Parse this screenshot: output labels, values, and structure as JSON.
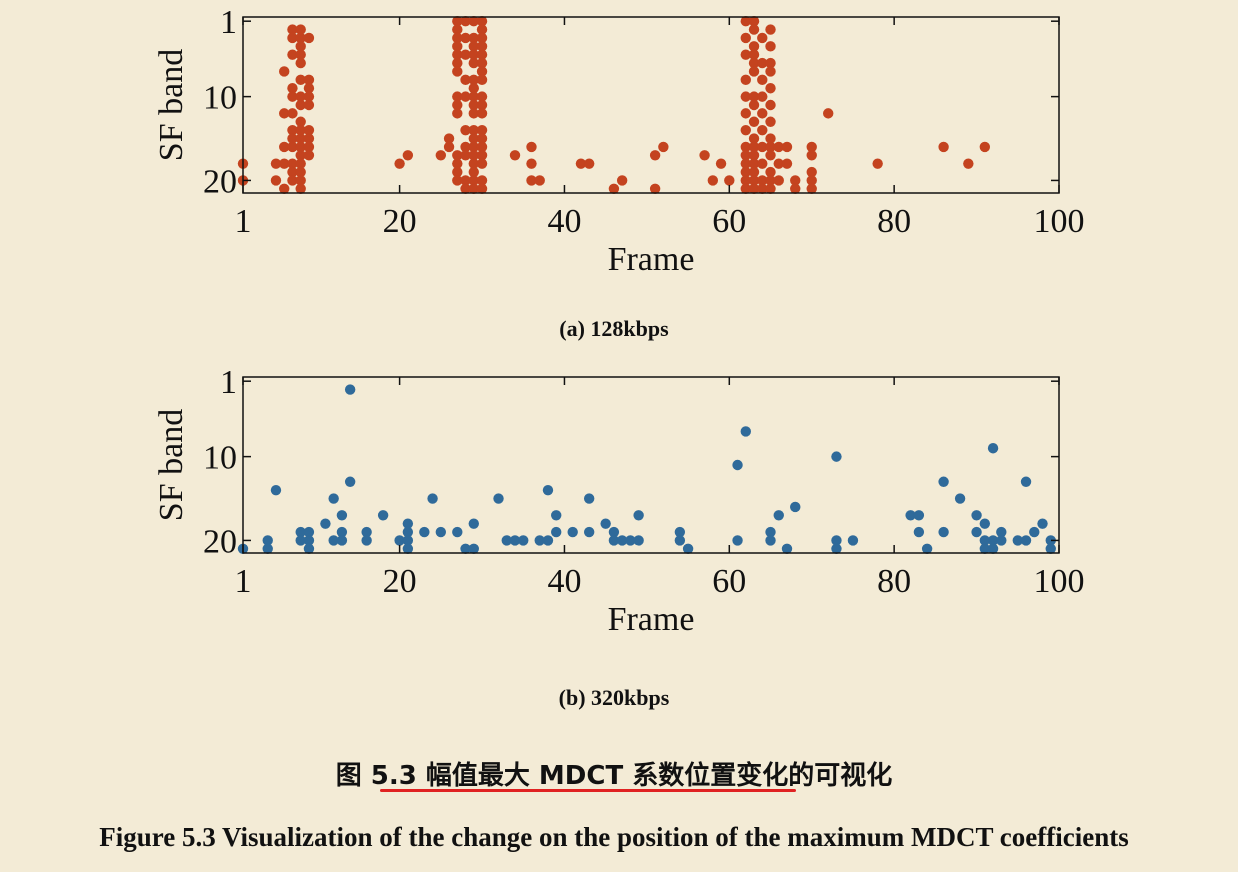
{
  "chart_data": [
    {
      "type": "scatter",
      "color": "#c4431f",
      "xlabel": "Frame",
      "ylabel": "SF band",
      "xlim": [
        1,
        100
      ],
      "ylim": [
        21.5,
        0.5
      ],
      "y_inverted": true,
      "xticks": [
        1,
        20,
        40,
        60,
        80,
        100
      ],
      "yticks": [
        1,
        10,
        20
      ],
      "grid": false,
      "caption": "(a) 128kbps",
      "points": [
        [
          1,
          18
        ],
        [
          1,
          20
        ],
        [
          5,
          18
        ],
        [
          5,
          20
        ],
        [
          6,
          7
        ],
        [
          6,
          12
        ],
        [
          6,
          16
        ],
        [
          6,
          18
        ],
        [
          6,
          21
        ],
        [
          7,
          2
        ],
        [
          7,
          3
        ],
        [
          7,
          5
        ],
        [
          7,
          9
        ],
        [
          7,
          10
        ],
        [
          7,
          12
        ],
        [
          7,
          14
        ],
        [
          7,
          15
        ],
        [
          7,
          16
        ],
        [
          7,
          18
        ],
        [
          7,
          19
        ],
        [
          7,
          20
        ],
        [
          8,
          2
        ],
        [
          8,
          3
        ],
        [
          8,
          4
        ],
        [
          8,
          5
        ],
        [
          8,
          6
        ],
        [
          8,
          8
        ],
        [
          8,
          10
        ],
        [
          8,
          11
        ],
        [
          8,
          13
        ],
        [
          8,
          14
        ],
        [
          8,
          15
        ],
        [
          8,
          16
        ],
        [
          8,
          17
        ],
        [
          8,
          18
        ],
        [
          8,
          19
        ],
        [
          8,
          20
        ],
        [
          8,
          21
        ],
        [
          9,
          3
        ],
        [
          9,
          8
        ],
        [
          9,
          9
        ],
        [
          9,
          10
        ],
        [
          9,
          11
        ],
        [
          9,
          14
        ],
        [
          9,
          15
        ],
        [
          9,
          16
        ],
        [
          9,
          17
        ],
        [
          20,
          18
        ],
        [
          21,
          17
        ],
        [
          25,
          17
        ],
        [
          26,
          15
        ],
        [
          26,
          16
        ],
        [
          27,
          1
        ],
        [
          27,
          2
        ],
        [
          27,
          3
        ],
        [
          27,
          4
        ],
        [
          27,
          5
        ],
        [
          27,
          6
        ],
        [
          27,
          7
        ],
        [
          27,
          10
        ],
        [
          27,
          11
        ],
        [
          27,
          12
        ],
        [
          27,
          17
        ],
        [
          27,
          18
        ],
        [
          27,
          19
        ],
        [
          27,
          20
        ],
        [
          28,
          1
        ],
        [
          28,
          3
        ],
        [
          28,
          5
        ],
        [
          28,
          8
        ],
        [
          28,
          10
        ],
        [
          28,
          14
        ],
        [
          28,
          16
        ],
        [
          28,
          17
        ],
        [
          28,
          20
        ],
        [
          28,
          21
        ],
        [
          29,
          1
        ],
        [
          29,
          3
        ],
        [
          29,
          4
        ],
        [
          29,
          5
        ],
        [
          29,
          6
        ],
        [
          29,
          8
        ],
        [
          29,
          9
        ],
        [
          29,
          10
        ],
        [
          29,
          11
        ],
        [
          29,
          12
        ],
        [
          29,
          14
        ],
        [
          29,
          15
        ],
        [
          29,
          16
        ],
        [
          29,
          17
        ],
        [
          29,
          18
        ],
        [
          29,
          19
        ],
        [
          29,
          20
        ],
        [
          29,
          21
        ],
        [
          30,
          1
        ],
        [
          30,
          2
        ],
        [
          30,
          3
        ],
        [
          30,
          4
        ],
        [
          30,
          5
        ],
        [
          30,
          6
        ],
        [
          30,
          7
        ],
        [
          30,
          8
        ],
        [
          30,
          10
        ],
        [
          30,
          11
        ],
        [
          30,
          12
        ],
        [
          30,
          14
        ],
        [
          30,
          15
        ],
        [
          30,
          16
        ],
        [
          30,
          17
        ],
        [
          30,
          18
        ],
        [
          30,
          20
        ],
        [
          30,
          21
        ],
        [
          34,
          17
        ],
        [
          36,
          16
        ],
        [
          36,
          18
        ],
        [
          36,
          20
        ],
        [
          37,
          20
        ],
        [
          42,
          18
        ],
        [
          43,
          18
        ],
        [
          46,
          21
        ],
        [
          47,
          20
        ],
        [
          51,
          17
        ],
        [
          51,
          21
        ],
        [
          52,
          16
        ],
        [
          57,
          17
        ],
        [
          58,
          20
        ],
        [
          59,
          18
        ],
        [
          60,
          20
        ],
        [
          62,
          1
        ],
        [
          62,
          3
        ],
        [
          62,
          5
        ],
        [
          62,
          8
        ],
        [
          62,
          10
        ],
        [
          62,
          12
        ],
        [
          62,
          14
        ],
        [
          62,
          16
        ],
        [
          62,
          17
        ],
        [
          62,
          18
        ],
        [
          62,
          19
        ],
        [
          62,
          20
        ],
        [
          62,
          21
        ],
        [
          63,
          1
        ],
        [
          63,
          2
        ],
        [
          63,
          4
        ],
        [
          63,
          5
        ],
        [
          63,
          6
        ],
        [
          63,
          7
        ],
        [
          63,
          10
        ],
        [
          63,
          11
        ],
        [
          63,
          13
        ],
        [
          63,
          15
        ],
        [
          63,
          16
        ],
        [
          63,
          17
        ],
        [
          63,
          18
        ],
        [
          63,
          19
        ],
        [
          63,
          20
        ],
        [
          63,
          21
        ],
        [
          64,
          3
        ],
        [
          64,
          6
        ],
        [
          64,
          8
        ],
        [
          64,
          10
        ],
        [
          64,
          12
        ],
        [
          64,
          14
        ],
        [
          64,
          16
        ],
        [
          64,
          18
        ],
        [
          64,
          20
        ],
        [
          64,
          21
        ],
        [
          65,
          2
        ],
        [
          65,
          4
        ],
        [
          65,
          6
        ],
        [
          65,
          7
        ],
        [
          65,
          9
        ],
        [
          65,
          11
        ],
        [
          65,
          13
        ],
        [
          65,
          15
        ],
        [
          65,
          16
        ],
        [
          65,
          17
        ],
        [
          65,
          19
        ],
        [
          65,
          20
        ],
        [
          65,
          21
        ],
        [
          66,
          16
        ],
        [
          66,
          18
        ],
        [
          66,
          20
        ],
        [
          67,
          16
        ],
        [
          67,
          18
        ],
        [
          68,
          20
        ],
        [
          68,
          21
        ],
        [
          70,
          16
        ],
        [
          70,
          17
        ],
        [
          70,
          19
        ],
        [
          70,
          20
        ],
        [
          70,
          21
        ],
        [
          72,
          12
        ],
        [
          78,
          18
        ],
        [
          86,
          16
        ],
        [
          89,
          18
        ],
        [
          91,
          16
        ]
      ]
    },
    {
      "type": "scatter",
      "color": "#2f6a9a",
      "xlabel": "Frame",
      "ylabel": "SF band",
      "xlim": [
        1,
        100
      ],
      "ylim": [
        21.5,
        0.5
      ],
      "y_inverted": true,
      "xticks": [
        1,
        20,
        40,
        60,
        80,
        100
      ],
      "yticks": [
        1,
        10,
        20
      ],
      "grid": false,
      "caption": "(b) 320kbps",
      "points": [
        [
          1,
          21
        ],
        [
          4,
          20
        ],
        [
          4,
          21
        ],
        [
          5,
          14
        ],
        [
          8,
          19
        ],
        [
          8,
          20
        ],
        [
          9,
          19
        ],
        [
          9,
          20
        ],
        [
          9,
          21
        ],
        [
          11,
          18
        ],
        [
          12,
          15
        ],
        [
          12,
          20
        ],
        [
          13,
          17
        ],
        [
          13,
          19
        ],
        [
          13,
          20
        ],
        [
          14,
          2
        ],
        [
          14,
          13
        ],
        [
          16,
          19
        ],
        [
          16,
          20
        ],
        [
          18,
          17
        ],
        [
          20,
          20
        ],
        [
          21,
          18
        ],
        [
          21,
          19
        ],
        [
          21,
          20
        ],
        [
          21,
          21
        ],
        [
          23,
          19
        ],
        [
          24,
          15
        ],
        [
          25,
          19
        ],
        [
          27,
          19
        ],
        [
          28,
          21
        ],
        [
          29,
          18
        ],
        [
          29,
          21
        ],
        [
          32,
          15
        ],
        [
          33,
          20
        ],
        [
          34,
          20
        ],
        [
          35,
          20
        ],
        [
          37,
          20
        ],
        [
          38,
          14
        ],
        [
          38,
          20
        ],
        [
          39,
          17
        ],
        [
          39,
          19
        ],
        [
          41,
          19
        ],
        [
          43,
          15
        ],
        [
          43,
          19
        ],
        [
          45,
          18
        ],
        [
          46,
          19
        ],
        [
          46,
          20
        ],
        [
          47,
          20
        ],
        [
          48,
          20
        ],
        [
          49,
          17
        ],
        [
          49,
          20
        ],
        [
          54,
          19
        ],
        [
          54,
          20
        ],
        [
          55,
          21
        ],
        [
          61,
          11
        ],
        [
          61,
          20
        ],
        [
          62,
          7
        ],
        [
          65,
          19
        ],
        [
          65,
          20
        ],
        [
          66,
          17
        ],
        [
          67,
          21
        ],
        [
          68,
          16
        ],
        [
          73,
          10
        ],
        [
          73,
          20
        ],
        [
          73,
          21
        ],
        [
          75,
          20
        ],
        [
          82,
          17
        ],
        [
          83,
          17
        ],
        [
          83,
          19
        ],
        [
          84,
          21
        ],
        [
          86,
          13
        ],
        [
          86,
          19
        ],
        [
          88,
          15
        ],
        [
          90,
          17
        ],
        [
          90,
          19
        ],
        [
          91,
          18
        ],
        [
          91,
          20
        ],
        [
          91,
          21
        ],
        [
          92,
          9
        ],
        [
          92,
          20
        ],
        [
          92,
          21
        ],
        [
          93,
          19
        ],
        [
          93,
          20
        ],
        [
          95,
          20
        ],
        [
          96,
          13
        ],
        [
          96,
          20
        ],
        [
          97,
          19
        ],
        [
          98,
          18
        ],
        [
          99,
          20
        ],
        [
          99,
          21
        ]
      ]
    }
  ],
  "captions": {
    "cn_prefix": "图 5.3 ",
    "cn_underlined": "幅值最大 MDCT 系数位置变化",
    "cn_suffix": "的可视化",
    "en": "Figure 5.3 Visualization of the change on the position of the maximum MDCT coefficients"
  }
}
